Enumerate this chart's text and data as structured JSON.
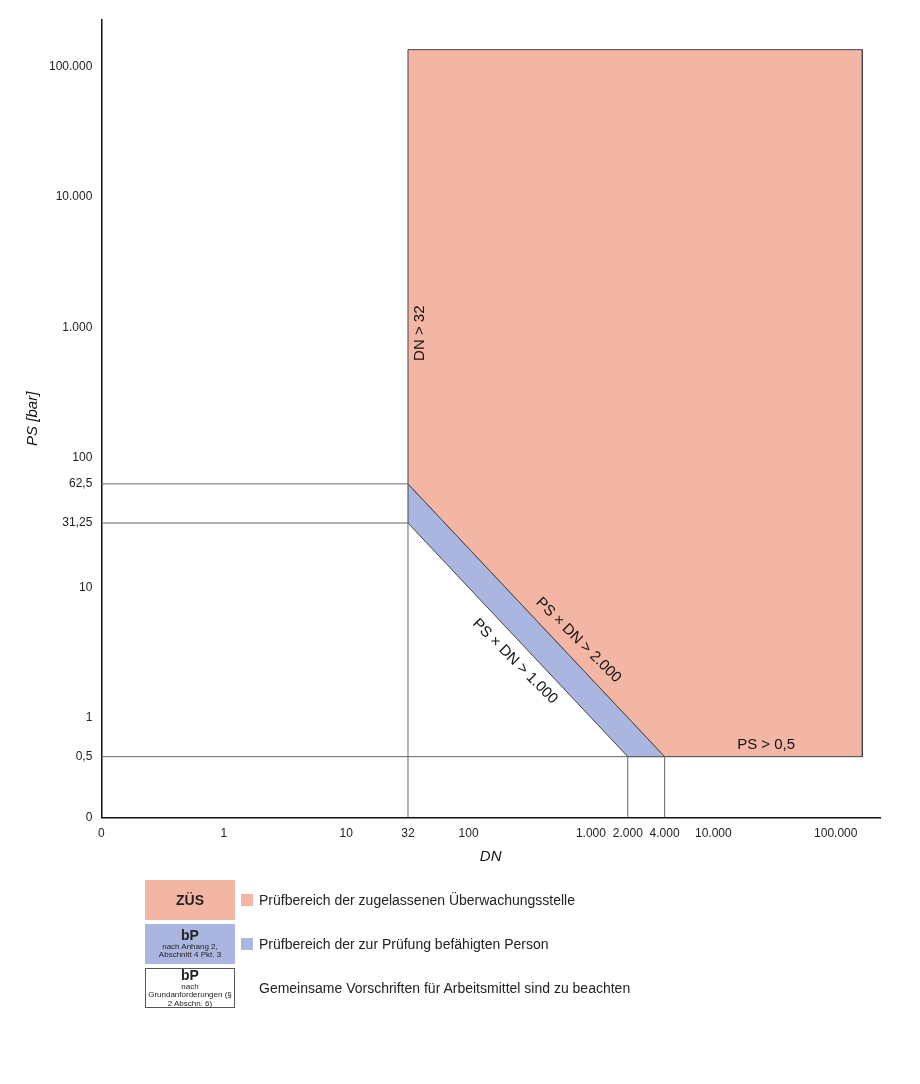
{
  "chart_data": {
    "type": "area",
    "xlabel": "DN",
    "ylabel": "PS [bar]",
    "log": "xy",
    "grid": false,
    "legend": "bottom",
    "xlim": [
      0.1,
      230000
    ],
    "ylim": [
      0.17,
      230000
    ],
    "xticks": [
      {
        "value": 0.1,
        "label": "0"
      },
      1,
      10,
      {
        "value": 32,
        "label": "32"
      },
      100,
      {
        "value": 1000,
        "label": "1.000"
      },
      {
        "value": 2000,
        "label": "2.000"
      },
      {
        "value": 4000,
        "label": "4.000"
      },
      {
        "value": 10000,
        "label": "10.000"
      },
      {
        "value": 100000,
        "label": "100.000"
      }
    ],
    "yticks": [
      {
        "value": 0.17,
        "label": "0"
      },
      {
        "value": 0.5,
        "label": "0,5"
      },
      1,
      10,
      {
        "value": 31.25,
        "label": "31,25"
      },
      {
        "value": 62.5,
        "label": "62,5"
      },
      100,
      {
        "value": 1000,
        "label": "1.000"
      },
      {
        "value": 10000,
        "label": "10.000"
      },
      {
        "value": 100000,
        "label": "100.000"
      }
    ],
    "series": [
      {
        "name": "Prüfbereich der zugelassenen Überwachungsstelle",
        "color": "#f4b6a4",
        "x": [
          32,
          32,
          165000,
          165000,
          4000,
          32
        ],
        "values": [
          62.5,
          136000,
          136000,
          0.5,
          0.5,
          62.5
        ]
      },
      {
        "name": "Prüfbereich der zur Prüfung befähigten Person",
        "color": "#aab6e0",
        "x": [
          32,
          32,
          4000,
          2000,
          32
        ],
        "values": [
          31.25,
          62.5,
          0.5,
          0.5,
          31.25
        ]
      },
      {
        "type": "line",
        "color": "#666666",
        "x": [
          0.1,
          32
        ],
        "values": [
          62.5,
          62.5
        ]
      },
      {
        "type": "line",
        "color": "#666666",
        "x": [
          0.1,
          32
        ],
        "values": [
          31.25,
          31.25
        ]
      },
      {
        "type": "line",
        "color": "#666666",
        "x": [
          0.1,
          4000
        ],
        "values": [
          0.5,
          0.5
        ]
      },
      {
        "type": "line",
        "color": "#666666",
        "x": [
          32,
          32
        ],
        "values": [
          0.17,
          31.25
        ]
      },
      {
        "type": "line",
        "color": "#666666",
        "x": [
          2000,
          2000
        ],
        "values": [
          0.17,
          0.5
        ]
      },
      {
        "type": "line",
        "color": "#666666",
        "x": [
          4000,
          4000
        ],
        "values": [
          0.17,
          0.5
        ]
      }
    ],
    "annotations": [
      {
        "text": "DN > 32",
        "x": 32,
        "y": 900
      },
      {
        "text": "PS × DN > 2.000",
        "x": 630,
        "y": 3.175
      },
      {
        "text": "PS × DN > 1.000",
        "x": 300,
        "y": 3.333
      },
      {
        "text": "PS > 0,5",
        "x": 27000,
        "y": 0.5
      },
      "ZÜS",
      "bP nach Anhang 2, Abschnitt 4 Pkt. 3",
      "bP nach Grundanforderungen (§ 2 Abschn. 6)",
      "Gemeinsame Vorschriften für Arbeitsmittel sind zu beachten"
    ]
  }
}
